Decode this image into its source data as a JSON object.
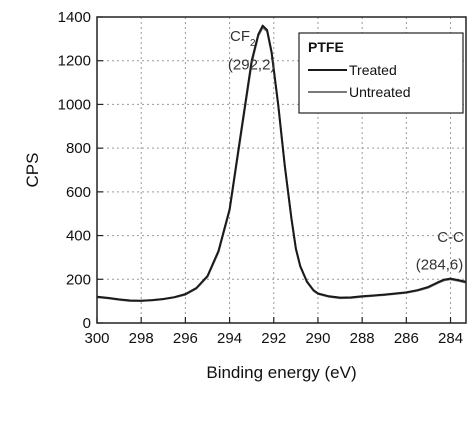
{
  "chart_data": {
    "type": "line",
    "xlabel": "Binding energy (eV)",
    "ylabel": "CPS",
    "xlim": [
      300,
      283.3
    ],
    "ylim": [
      0,
      1400
    ],
    "x_reversed": true,
    "xticks": [
      300,
      298,
      296,
      294,
      292,
      290,
      288,
      286,
      284
    ],
    "yticks": [
      0,
      200,
      400,
      600,
      800,
      1000,
      1200,
      1400
    ],
    "grid": true,
    "legend_title": "PTFE",
    "legend_position": "top-right",
    "series": [
      {
        "name": "Treated",
        "color": "#1a1a1a",
        "x": [
          300,
          299.5,
          299,
          298.5,
          298,
          297.5,
          297,
          296.5,
          296,
          295.5,
          295,
          294.5,
          294,
          293.5,
          293,
          292.7,
          292.5,
          292.3,
          292.1,
          291.8,
          291.5,
          291.2,
          291,
          290.8,
          290.5,
          290.2,
          290,
          289.5,
          289,
          288.5,
          288,
          287.5,
          287,
          286.5,
          286,
          285.5,
          285,
          284.6,
          284.3,
          284,
          283.6,
          283.3
        ],
        "y": [
          120,
          115,
          108,
          103,
          102,
          105,
          110,
          118,
          132,
          160,
          215,
          330,
          520,
          860,
          1200,
          1320,
          1360,
          1340,
          1240,
          1000,
          720,
          480,
          340,
          260,
          190,
          150,
          135,
          122,
          116,
          117,
          122,
          126,
          130,
          135,
          140,
          150,
          165,
          185,
          198,
          203,
          195,
          188
        ]
      },
      {
        "name": "Untreated",
        "color": "#7a7a7a",
        "x": [
          300,
          299.5,
          299,
          298.5,
          298,
          297.5,
          297,
          296.5,
          296,
          295.5,
          295,
          294.5,
          294,
          293.5,
          293,
          292.7,
          292.5,
          292.3,
          292.1,
          291.8,
          291.5,
          291.2,
          291,
          290.8,
          290.5,
          290.2,
          290,
          289.5,
          289,
          288.5,
          288,
          287.5,
          287,
          286.5,
          286,
          285.5,
          285,
          284.6,
          284.3,
          284,
          283.6,
          283.3
        ],
        "y": [
          118,
          113,
          106,
          101,
          101,
          104,
          109,
          117,
          130,
          158,
          212,
          325,
          515,
          850,
          1190,
          1315,
          1352,
          1335,
          1235,
          995,
          715,
          478,
          338,
          258,
          188,
          148,
          133,
          120,
          114,
          115,
          120,
          124,
          128,
          133,
          138,
          148,
          162,
          182,
          195,
          200,
          192,
          185
        ]
      }
    ],
    "annotations": [
      {
        "id": "cf2-label",
        "text": "CF",
        "subscript": "2",
        "x": 293.4,
        "y": 1290
      },
      {
        "id": "cf2-value",
        "text": "(292,2)",
        "x": 293.0,
        "y": 1160
      },
      {
        "id": "cc-label",
        "text": "C-C",
        "x": 284.0,
        "y": 370
      },
      {
        "id": "cc-value",
        "text": "(284,6)",
        "x": 284.5,
        "y": 245
      }
    ]
  }
}
